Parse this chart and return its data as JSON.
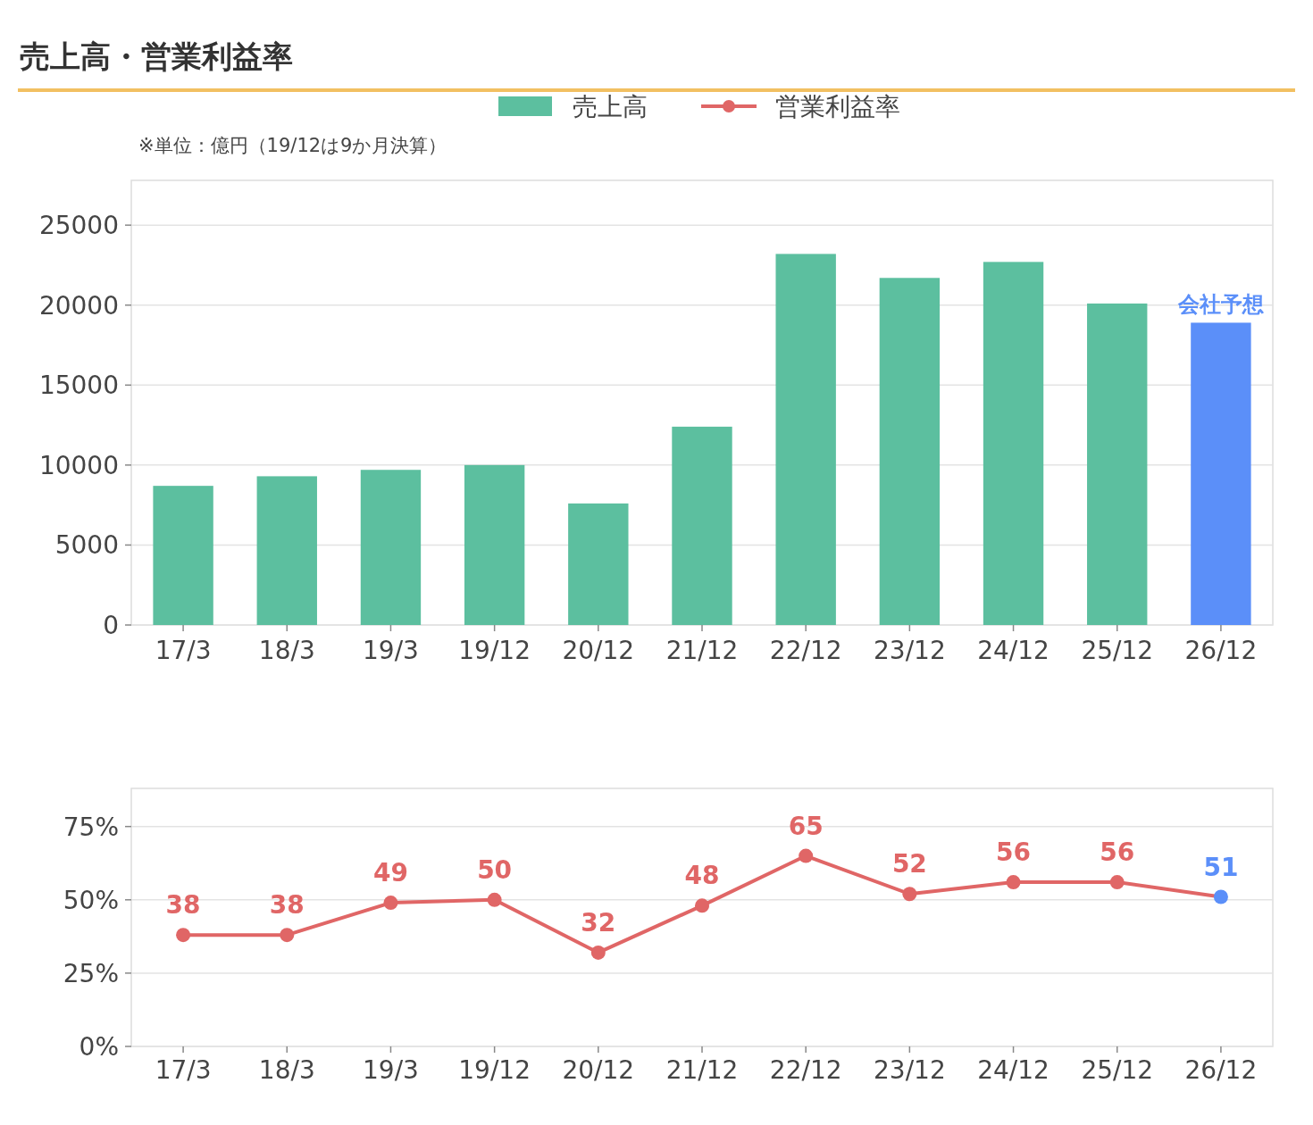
{
  "chart_data": [
    {
      "type": "bar",
      "title": "売上高・営業利益率",
      "subtitle": "※単位：億円（19/12は9か月決算）",
      "categories": [
        "17/3",
        "18/3",
        "19/3",
        "19/12",
        "20/12",
        "21/12",
        "22/12",
        "23/12",
        "24/12",
        "25/12",
        "26/12"
      ],
      "series": [
        {
          "name": "売上高",
          "color": "#5cbf9f",
          "colors": [
            "#5cbf9f",
            "#5cbf9f",
            "#5cbf9f",
            "#5cbf9f",
            "#5cbf9f",
            "#5cbf9f",
            "#5cbf9f",
            "#5cbf9f",
            "#5cbf9f",
            "#5cbf9f",
            "#5b8ff9"
          ],
          "values": [
            8700,
            9300,
            9700,
            10000,
            7600,
            12400,
            23200,
            21700,
            22700,
            20100,
            18900
          ]
        }
      ],
      "ylim": [
        0,
        27800
      ],
      "yticks": [
        0,
        5000,
        10000,
        15000,
        20000,
        25000
      ],
      "grid": "y",
      "legend": "top",
      "annotations": [
        {
          "text": "会社予想",
          "x": "26/12",
          "y": 18900
        }
      ]
    },
    {
      "type": "line",
      "categories": [
        "17/3",
        "18/3",
        "19/3",
        "19/12",
        "20/12",
        "21/12",
        "22/12",
        "23/12",
        "24/12",
        "25/12",
        "26/12"
      ],
      "series": [
        {
          "name": "営業利益率",
          "color": "#e06666",
          "colors": [
            "#e06666",
            "#e06666",
            "#e06666",
            "#e06666",
            "#e06666",
            "#e06666",
            "#e06666",
            "#e06666",
            "#e06666",
            "#e06666",
            "#5b8ff9"
          ],
          "values": [
            38,
            38,
            49,
            50,
            32,
            48,
            65,
            52,
            56,
            56,
            51
          ]
        }
      ],
      "ylim": [
        0,
        88
      ],
      "yticks": [
        {
          "value": 0,
          "label": "0%"
        },
        {
          "value": 25,
          "label": "25%"
        },
        {
          "value": 50,
          "label": "50%"
        },
        {
          "value": 75,
          "label": "75%"
        }
      ],
      "grid": "y",
      "legend": "top",
      "marker": "circle",
      "data_labels": true
    }
  ]
}
